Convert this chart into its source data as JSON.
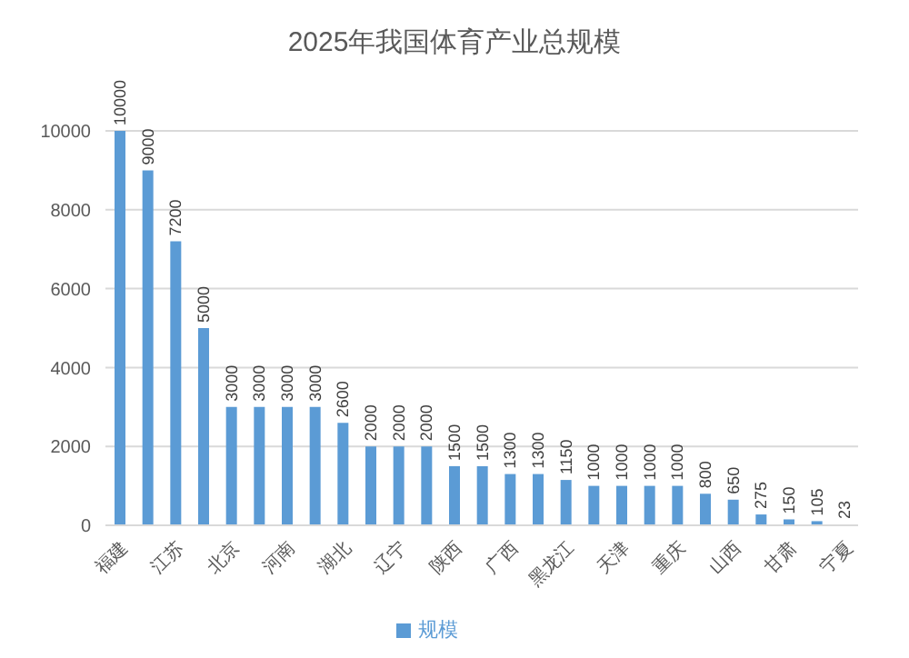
{
  "chart_data": {
    "type": "bar",
    "title": "2025年我国体育产业总规模",
    "categories": [
      "福建",
      null,
      "江苏",
      null,
      "北京",
      null,
      "河南",
      null,
      "湖北",
      null,
      "辽宁",
      null,
      "陕西",
      null,
      "广西",
      null,
      "黑龙江",
      null,
      "天津",
      null,
      "重庆",
      null,
      "山西",
      null,
      "甘肃",
      null,
      "宁夏"
    ],
    "series": [
      {
        "name": "规模",
        "color": "#5b9bd5",
        "values": [
          10000,
          9000,
          7200,
          5000,
          3000,
          3000,
          3000,
          3000,
          2600,
          2000,
          2000,
          2000,
          1500,
          1500,
          1300,
          1300,
          1150,
          1000,
          1000,
          1000,
          1000,
          800,
          650,
          275,
          150,
          105,
          23
        ]
      }
    ],
    "ylim": [
      0,
      10000
    ],
    "yticks": [
      0,
      2000,
      4000,
      6000,
      8000,
      10000
    ],
    "grid": "y",
    "legend": "bottom",
    "data_labels": true
  }
}
